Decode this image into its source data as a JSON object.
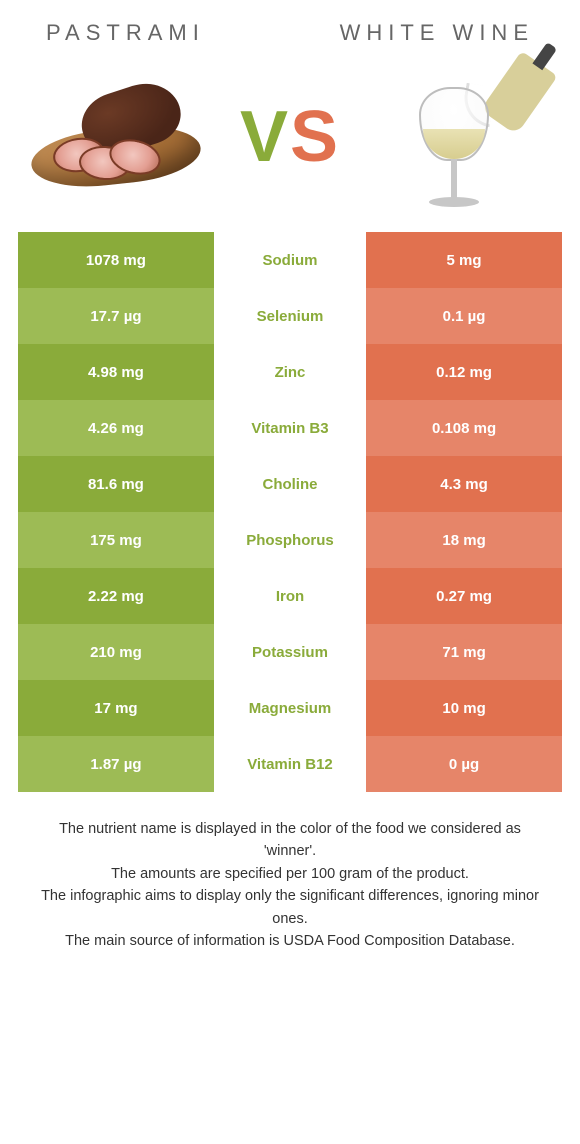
{
  "titles": {
    "left": "PASTRAMI",
    "right": "WHITE WINE"
  },
  "vs": {
    "v": "V",
    "s": "S"
  },
  "colors": {
    "green_dark": "#8aab3a",
    "green_light": "#9dbb55",
    "orange_dark": "#e1714f",
    "orange_light": "#e68569",
    "mid_green": "#8aab3a",
    "mid_orange": "#e1714f"
  },
  "rows": [
    {
      "nutrient": "Sodium",
      "left": "1078 mg",
      "right": "5 mg",
      "winner": "left"
    },
    {
      "nutrient": "Selenium",
      "left": "17.7 µg",
      "right": "0.1 µg",
      "winner": "left"
    },
    {
      "nutrient": "Zinc",
      "left": "4.98 mg",
      "right": "0.12 mg",
      "winner": "left"
    },
    {
      "nutrient": "Vitamin B3",
      "left": "4.26 mg",
      "right": "0.108 mg",
      "winner": "left"
    },
    {
      "nutrient": "Choline",
      "left": "81.6 mg",
      "right": "4.3 mg",
      "winner": "left"
    },
    {
      "nutrient": "Phosphorus",
      "left": "175 mg",
      "right": "18 mg",
      "winner": "left"
    },
    {
      "nutrient": "Iron",
      "left": "2.22 mg",
      "right": "0.27 mg",
      "winner": "left"
    },
    {
      "nutrient": "Potassium",
      "left": "210 mg",
      "right": "71 mg",
      "winner": "left"
    },
    {
      "nutrient": "Magnesium",
      "left": "17 mg",
      "right": "10 mg",
      "winner": "left"
    },
    {
      "nutrient": "Vitamin B12",
      "left": "1.87 µg",
      "right": "0 µg",
      "winner": "left"
    }
  ],
  "footer": [
    "The nutrient name is displayed in the color of the food we considered as 'winner'.",
    "The amounts are specified per 100 gram of the product.",
    "The infographic aims to display only the significant differences, ignoring minor ones.",
    "The main source of information is USDA Food Composition Database."
  ]
}
